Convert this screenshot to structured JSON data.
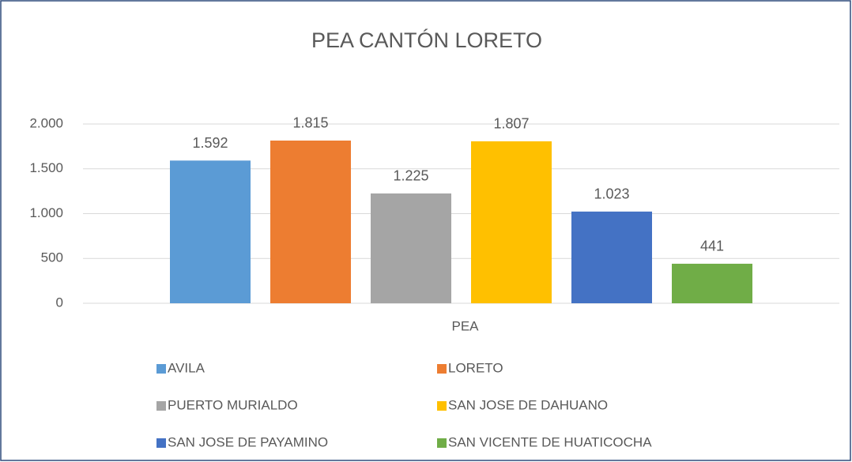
{
  "chart_data": {
    "type": "bar",
    "title": "PEA CANTÓN LORETO",
    "categories": [
      "PEA"
    ],
    "series": [
      {
        "name": "AVILA",
        "color": "#5b9bd5",
        "values": [
          1592
        ],
        "value_labels": [
          "1.592"
        ]
      },
      {
        "name": "LORETO",
        "color": "#ed7d31",
        "values": [
          1815
        ],
        "value_labels": [
          "1.815"
        ]
      },
      {
        "name": "PUERTO MURIALDO",
        "color": "#a5a5a5",
        "values": [
          1225
        ],
        "value_labels": [
          "1.225"
        ]
      },
      {
        "name": "SAN JOSE DE DAHUANO",
        "color": "#ffc000",
        "values": [
          1807
        ],
        "value_labels": [
          "1.807"
        ]
      },
      {
        "name": "SAN JOSE DE PAYAMINO",
        "color": "#4472c4",
        "values": [
          1023
        ],
        "value_labels": [
          "1.023"
        ]
      },
      {
        "name": "SAN VICENTE DE HUATICOCHA",
        "color": "#70ad47",
        "values": [
          441
        ],
        "value_labels": [
          "441"
        ]
      }
    ],
    "ylim": [
      0,
      2000
    ],
    "yticks": [
      0,
      500,
      {
        "value": 1000,
        "label": "1.000"
      },
      {
        "value": 1500,
        "label": "1.500"
      },
      {
        "value": 2000,
        "label": "2.000"
      }
    ],
    "grid": true,
    "legend": "bottom"
  }
}
